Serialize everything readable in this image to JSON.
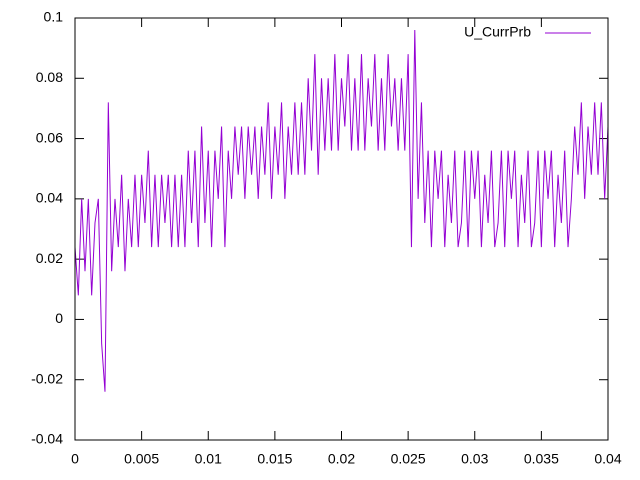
{
  "chart_data": {
    "type": "line",
    "x": [
      0,
      0.00025,
      0.0005,
      0.00075,
      0.001,
      0.00125,
      0.0015,
      0.00175,
      0.002,
      0.00225,
      0.0025,
      0.00275,
      0.003,
      0.00325,
      0.0035,
      0.00375,
      0.004,
      0.00425,
      0.0045,
      0.00475,
      0.005,
      0.00525,
      0.0055,
      0.00575,
      0.006,
      0.00625,
      0.0065,
      0.00675,
      0.007,
      0.00725,
      0.0075,
      0.00775,
      0.008,
      0.00825,
      0.0085,
      0.00875,
      0.009,
      0.00925,
      0.0095,
      0.00975,
      0.01,
      0.01025,
      0.0105,
      0.01075,
      0.011,
      0.01125,
      0.0115,
      0.01175,
      0.012,
      0.01225,
      0.0125,
      0.01275,
      0.013,
      0.01325,
      0.0135,
      0.01375,
      0.014,
      0.01425,
      0.0145,
      0.01475,
      0.015,
      0.01525,
      0.0155,
      0.01575,
      0.016,
      0.01625,
      0.0165,
      0.01675,
      0.017,
      0.01725,
      0.0175,
      0.01775,
      0.018,
      0.01825,
      0.0185,
      0.01875,
      0.019,
      0.01925,
      0.0195,
      0.01975,
      0.02,
      0.02025,
      0.0205,
      0.02075,
      0.021,
      0.02125,
      0.0215,
      0.02175,
      0.022,
      0.02225,
      0.0225,
      0.02275,
      0.023,
      0.02325,
      0.0235,
      0.02375,
      0.024,
      0.02425,
      0.0245,
      0.02475,
      0.025,
      0.02525,
      0.0255,
      0.02575,
      0.026,
      0.02625,
      0.0265,
      0.02675,
      0.027,
      0.02725,
      0.0275,
      0.02775,
      0.028,
      0.02825,
      0.0285,
      0.02875,
      0.029,
      0.02925,
      0.0295,
      0.02975,
      0.03,
      0.03025,
      0.0305,
      0.03075,
      0.031,
      0.03125,
      0.0315,
      0.03175,
      0.032,
      0.03225,
      0.0325,
      0.03275,
      0.033,
      0.03325,
      0.0335,
      0.03375,
      0.034,
      0.03425,
      0.0345,
      0.03475,
      0.035,
      0.03525,
      0.0355,
      0.03575,
      0.036,
      0.03625,
      0.0365,
      0.03675,
      0.037,
      0.03725,
      0.0375,
      0.03775,
      0.038,
      0.03825,
      0.0385,
      0.03875,
      0.039,
      0.03925,
      0.0395,
      0.03975,
      0.04
    ],
    "series": [
      {
        "name": "U_CurrPrb",
        "color": "#9400d3",
        "values": [
          0.024,
          0.008,
          0.04,
          0.016,
          0.04,
          0.008,
          0.032,
          0.04,
          -0.008,
          -0.024,
          0.072,
          0.016,
          0.04,
          0.024,
          0.048,
          0.016,
          0.04,
          0.024,
          0.048,
          0.024,
          0.048,
          0.032,
          0.056,
          0.024,
          0.048,
          0.024,
          0.048,
          0.032,
          0.048,
          0.024,
          0.048,
          0.024,
          0.048,
          0.024,
          0.056,
          0.032,
          0.056,
          0.024,
          0.064,
          0.032,
          0.056,
          0.024,
          0.056,
          0.04,
          0.064,
          0.024,
          0.056,
          0.04,
          0.064,
          0.048,
          0.064,
          0.04,
          0.064,
          0.048,
          0.064,
          0.04,
          0.064,
          0.048,
          0.072,
          0.04,
          0.064,
          0.048,
          0.072,
          0.04,
          0.064,
          0.048,
          0.072,
          0.048,
          0.072,
          0.048,
          0.08,
          0.056,
          0.088,
          0.048,
          0.08,
          0.056,
          0.08,
          0.056,
          0.088,
          0.056,
          0.08,
          0.064,
          0.088,
          0.056,
          0.08,
          0.056,
          0.088,
          0.056,
          0.08,
          0.064,
          0.088,
          0.056,
          0.08,
          0.056,
          0.088,
          0.064,
          0.08,
          0.056,
          0.08,
          0.056,
          0.088,
          0.024,
          0.096,
          0.04,
          0.072,
          0.032,
          0.056,
          0.024,
          0.056,
          0.04,
          0.056,
          0.024,
          0.048,
          0.032,
          0.056,
          0.024,
          0.032,
          0.056,
          0.024,
          0.056,
          0.04,
          0.056,
          0.024,
          0.048,
          0.032,
          0.056,
          0.024,
          0.032,
          0.056,
          0.024,
          0.056,
          0.04,
          0.056,
          0.024,
          0.048,
          0.032,
          0.056,
          0.024,
          0.032,
          0.056,
          0.024,
          0.056,
          0.04,
          0.056,
          0.024,
          0.048,
          0.032,
          0.056,
          0.024,
          0.04,
          0.064,
          0.048,
          0.072,
          0.04,
          0.064,
          0.048,
          0.072,
          0.048,
          0.072,
          0.04,
          0.064
        ]
      }
    ],
    "xlim": [
      0,
      0.04
    ],
    "xticks": [
      0,
      0.005,
      0.01,
      0.015,
      0.02,
      0.025,
      0.03,
      0.035,
      0.04
    ],
    "ylim": [
      -0.04,
      0.1
    ],
    "yticks": [
      -0.04,
      -0.02,
      0,
      0.02,
      0.04,
      0.06,
      0.08,
      0.1
    ],
    "grid": false,
    "legend": "top-right"
  }
}
